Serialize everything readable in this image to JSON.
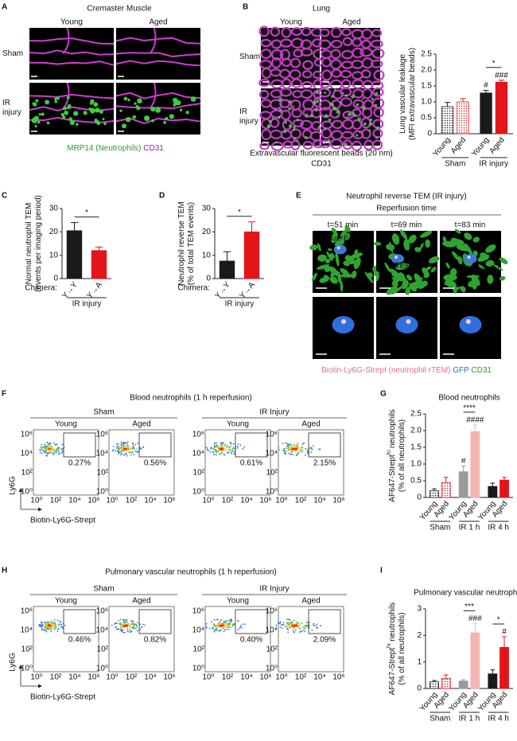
{
  "panel_labels": [
    "A",
    "B",
    "C",
    "D",
    "E",
    "F",
    "G",
    "H",
    "I"
  ],
  "panel_a": {
    "title": "Cremaster Muscle",
    "columns": [
      "Young",
      "Aged"
    ],
    "rows": [
      "Sham",
      "IR injury"
    ],
    "caption": [
      "MRP14 (Neutrophils)",
      "CD31"
    ]
  },
  "panel_b": {
    "title": "Lung",
    "columns": [
      "Young",
      "Aged"
    ],
    "rows": [
      "Sham",
      "IR injury"
    ],
    "caption": [
      "Extravascular fluorescent beads (20 nm)",
      "CD31"
    ]
  },
  "panel_e": {
    "title": "Neutrophil reverse TEM (IR injury)",
    "subtitle": "Reperfusion time",
    "times": [
      "t=51 min",
      "t=69 min",
      "t=83 min"
    ],
    "labels": [
      "Sub-EC",
      "rTEM",
      "Luminal"
    ],
    "caption": [
      "Biotin-Ly6G-Strept (neutrophil rTEM)",
      "GFP",
      "CD31"
    ]
  },
  "panel_f": {
    "title": "Blood neutrophils (1 h reperfusion)",
    "groups": [
      "Sham",
      "IR Injury"
    ],
    "plots": [
      {
        "label": "Young",
        "gate": "0.27%"
      },
      {
        "label": "Aged",
        "gate": "0.56%"
      },
      {
        "label": "Young",
        "gate": "0.61%"
      },
      {
        "label": "Aged",
        "gate": "2.15%"
      }
    ],
    "y_label": "Ly6G",
    "x_label": "Biotin-Ly6G-Strept",
    "ticks": [
      "10⁰",
      "10²",
      "10⁴",
      "10⁶"
    ]
  },
  "panel_h": {
    "title": "Pulmonary vascular neutrophils (1 h reperfusion)",
    "groups": [
      "Sham",
      "IR Injury"
    ],
    "plots": [
      {
        "label": "Young",
        "gate": "0.46%"
      },
      {
        "label": "Aged",
        "gate": "0.82%"
      },
      {
        "label": "Young",
        "gate": "0.40%"
      },
      {
        "label": "Aged",
        "gate": "2.09%"
      }
    ],
    "y_label": "Ly6G",
    "x_label": "Biotin-Ly6G-Strept",
    "ticks": [
      "10⁰",
      "10²",
      "10⁴",
      "10⁶"
    ]
  },
  "chart_data": [
    {
      "type": "bar",
      "ylabel": [
        {
          "text": "Lung vascular leakage"
        },
        {
          "text": "(MFI extravascular beads)"
        }
      ],
      "categories": [
        "Young",
        "Aged",
        "Young",
        "Aged"
      ],
      "values": [
        0.85,
        1.0,
        1.28,
        1.62
      ],
      "errors": [
        0.13,
        0.1,
        0.08,
        0.06
      ],
      "colors": [
        "#1a1a1a",
        "#e3151a",
        "#1a1a1a",
        "#e3151a"
      ],
      "fill_styles": [
        "dotted",
        "dotted",
        "solid",
        "solid"
      ],
      "groups": [
        "Sham",
        "IR injury"
      ],
      "ylim": [
        0,
        2.5
      ],
      "yticks": [
        0,
        0.5,
        {
          "value": 1,
          "label": "1.0"
        },
        1.5,
        {
          "value": 2,
          "label": "2.0"
        },
        2.5
      ],
      "annotations": [
        "#",
        "###",
        "*"
      ]
    },
    {
      "type": "bar",
      "ylabel": [
        {
          "text": "Normal neutrophil TEM"
        },
        {
          "text": "(events per imaging period)"
        }
      ],
      "categories": [
        "Y→Y",
        "Y→A"
      ],
      "category_title": "Chimera:",
      "values": [
        20.5,
        12
      ],
      "errors": [
        3.5,
        1.5
      ],
      "colors": [
        "#1a1a1a",
        "#e3151a"
      ],
      "fill_styles": [
        "solid",
        "solid"
      ],
      "groups": [
        "IR injury"
      ],
      "ylim": [
        0,
        30
      ],
      "yticks": [
        0,
        10,
        20,
        30
      ],
      "annotations": [
        "*"
      ]
    },
    {
      "type": "bar",
      "ylabel": [
        {
          "text": "Neutrophil reverse TEM"
        },
        {
          "text": "(% of total TEM events)"
        }
      ],
      "categories": [
        "Y→Y",
        "Y→A"
      ],
      "category_title": "Chimera:",
      "values": [
        7.5,
        20
      ],
      "errors": [
        4,
        4.3
      ],
      "colors": [
        "#1a1a1a",
        "#e3151a"
      ],
      "fill_styles": [
        "solid",
        "solid"
      ],
      "groups": [
        "IR injury"
      ],
      "ylim": [
        0,
        30
      ],
      "yticks": [
        0,
        10,
        20,
        30
      ],
      "annotations": [
        "*"
      ]
    },
    {
      "type": "bar",
      "title": "Blood neutrophils",
      "ylabel": [
        {
          "text": "AF647-Strept",
          "sup": "hi",
          "tail": " neutrophils"
        },
        {
          "text": "(% of all neutrophils)"
        }
      ],
      "categories": [
        "Young",
        "Aged",
        "Young",
        "Aged",
        "Young",
        "Aged"
      ],
      "values": [
        0.2,
        0.45,
        0.77,
        1.97,
        0.33,
        0.52
      ],
      "errors": [
        0.06,
        0.15,
        0.17,
        0.2,
        0.1,
        0.08
      ],
      "colors": [
        "#1a1a1a",
        "#e3151a",
        "#9a9a9a",
        "#f6b3b3",
        "#1a1a1a",
        "#e3151a"
      ],
      "fill_styles": [
        "dotted",
        "dotted",
        "solid",
        "solid",
        "solid",
        "solid"
      ],
      "groups": [
        "Sham",
        "IR 1 h",
        "IR 4 h"
      ],
      "ylim": [
        0,
        2.5
      ],
      "yticks": [
        0,
        0.5,
        {
          "value": 1,
          "label": "1.0"
        },
        1.5,
        {
          "value": 2,
          "label": "2.0"
        },
        2.5
      ],
      "annotations": [
        "****",
        "####",
        "#"
      ]
    },
    {
      "type": "bar",
      "title": "Pulmonary vascular neutrophils",
      "ylabel": [
        {
          "text": "AF647-Strept",
          "sup": "hi",
          "tail": " neutrophils"
        },
        {
          "text": "(% of all neutrophils)"
        }
      ],
      "categories": [
        "Young",
        "Aged",
        "Young",
        "Aged",
        "Young",
        "Aged"
      ],
      "values": [
        0.25,
        0.38,
        0.28,
        2.1,
        0.55,
        1.55
      ],
      "errors": [
        0.05,
        0.13,
        0.05,
        0.35,
        0.15,
        0.4
      ],
      "colors": [
        "#1a1a1a",
        "#e3151a",
        "#9a9a9a",
        "#f6b3b3",
        "#1a1a1a",
        "#e3151a"
      ],
      "fill_styles": [
        "dotted",
        "dotted",
        "solid",
        "solid",
        "solid",
        "solid"
      ],
      "groups": [
        "Sham",
        "IR 1 h",
        "IR 4 h"
      ],
      "ylim": [
        0,
        3
      ],
      "yticks": [
        0,
        1,
        2,
        3
      ],
      "annotations": [
        "***",
        "###",
        "*",
        "#"
      ]
    }
  ]
}
